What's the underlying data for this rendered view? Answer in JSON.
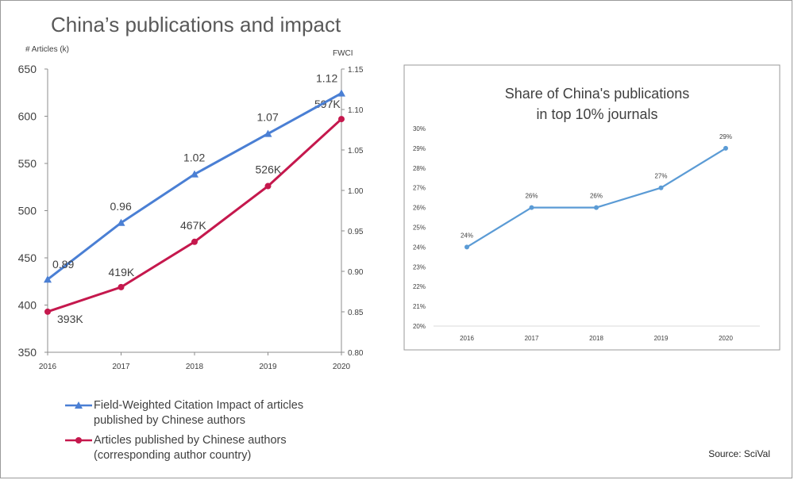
{
  "title": "China’s publications and impact",
  "source": "Source: SciVal",
  "colors": {
    "fwci": "#4a7fd4",
    "articles": "#c5184d",
    "share": "#5b9bd5"
  },
  "chart_data": [
    {
      "type": "line",
      "x": [
        "2016",
        "2017",
        "2018",
        "2019",
        "2020"
      ],
      "y_left_label": "# Articles (k)",
      "y_left_lim": [
        350,
        650
      ],
      "y_left_ticks": [
        "350",
        "400",
        "450",
        "500",
        "550",
        "600",
        "650"
      ],
      "y_right_label": "FWCI",
      "y_right_lim": [
        0.8,
        1.15
      ],
      "y_right_ticks": [
        "0.80",
        "0.85",
        "0.90",
        "0.95",
        "1.00",
        "1.05",
        "1.10",
        "1.15"
      ],
      "series": [
        {
          "key": "fwci",
          "axis": "right",
          "marker": "triangle",
          "values": [
            0.89,
            0.96,
            1.02,
            1.07,
            1.12
          ],
          "labels": [
            "0.89",
            "0.96",
            "1.02",
            "1.07",
            "1.12"
          ],
          "legend": [
            "Field-Weighted Citation Impact of articles",
            "published by Chinese authors"
          ]
        },
        {
          "key": "articles",
          "axis": "left",
          "marker": "circle",
          "values": [
            393,
            419,
            467,
            526,
            597
          ],
          "labels": [
            "393K",
            "419K",
            "467K",
            "526K",
            "597K"
          ],
          "legend": [
            "Articles published by Chinese authors",
            "(corresponding author country)"
          ]
        }
      ],
      "legend_position": "bottom-left",
      "grid": false
    },
    {
      "type": "line",
      "title_lines": [
        "Share of China's publications",
        "in top 10% journals"
      ],
      "x": [
        "2016",
        "2017",
        "2018",
        "2019",
        "2020"
      ],
      "ylim": [
        20,
        30
      ],
      "yticks": [
        "20%",
        "21%",
        "22%",
        "23%",
        "24%",
        "25%",
        "26%",
        "27%",
        "28%",
        "29%",
        "30%"
      ],
      "values": [
        24,
        26,
        26,
        27,
        29
      ],
      "labels": [
        "24%",
        "26%",
        "26%",
        "27%",
        "29%"
      ],
      "grid": false
    }
  ]
}
